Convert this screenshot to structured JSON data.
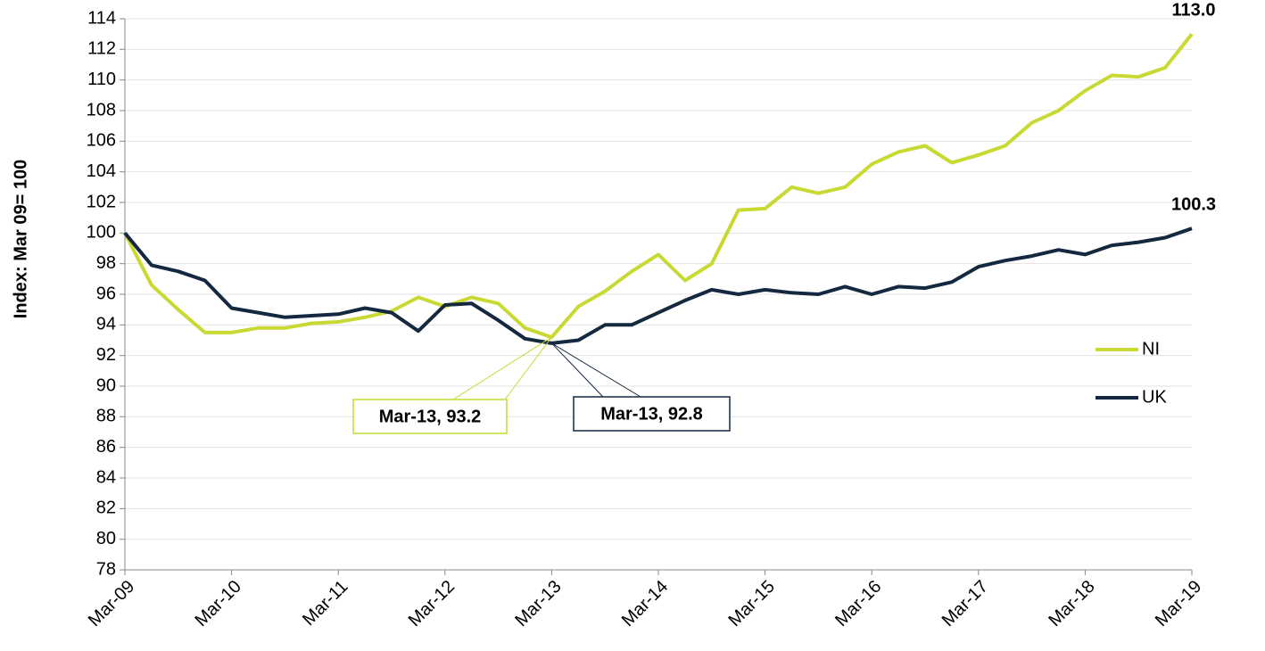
{
  "chart_data": {
    "type": "line",
    "y_label": "Index: Mar 09= 100",
    "categories": [
      "Mar-09",
      null,
      null,
      null,
      "Mar-10",
      null,
      null,
      null,
      "Mar-11",
      null,
      null,
      null,
      "Mar-12",
      null,
      null,
      null,
      "Mar-13",
      null,
      null,
      null,
      "Mar-14",
      null,
      null,
      null,
      "Mar-15",
      null,
      null,
      null,
      "Mar-16",
      null,
      null,
      null,
      "Mar-17",
      null,
      null,
      null,
      "Mar-18",
      null,
      null,
      null,
      "Mar-19"
    ],
    "series": [
      {
        "name": "NI",
        "color": "#c9d933",
        "values": [
          100,
          96.6,
          95.0,
          93.5,
          93.5,
          93.8,
          93.8,
          94.1,
          94.2,
          94.5,
          94.9,
          95.8,
          95.2,
          95.8,
          95.4,
          93.8,
          93.2,
          95.2,
          96.2,
          97.5,
          98.6,
          96.9,
          98.0,
          101.5,
          101.6,
          103.0,
          102.6,
          103.0,
          104.5,
          105.3,
          105.7,
          104.6,
          105.1,
          105.7,
          107.2,
          108.0,
          109.3,
          110.3,
          110.2,
          110.8,
          113.0
        ],
        "value_labels": [
          null,
          null,
          null,
          null,
          null,
          null,
          null,
          null,
          null,
          null,
          null,
          null,
          null,
          null,
          null,
          null,
          null,
          null,
          null,
          null,
          null,
          null,
          null,
          null,
          null,
          null,
          null,
          null,
          null,
          null,
          null,
          null,
          null,
          null,
          null,
          null,
          null,
          null,
          null,
          null,
          "113.0"
        ]
      },
      {
        "name": "UK",
        "color": "#14283f",
        "values": [
          100,
          97.9,
          97.5,
          96.9,
          95.1,
          94.8,
          94.5,
          94.6,
          94.7,
          95.1,
          94.8,
          93.6,
          95.3,
          95.4,
          94.3,
          93.1,
          92.8,
          93.0,
          94.0,
          94.0,
          94.8,
          95.6,
          96.3,
          96.0,
          96.3,
          96.1,
          96.0,
          96.5,
          96.0,
          96.5,
          96.4,
          96.8,
          97.8,
          98.2,
          98.5,
          98.9,
          98.6,
          99.2,
          99.4,
          99.7,
          100.3
        ],
        "value_labels": [
          null,
          null,
          null,
          null,
          null,
          null,
          null,
          null,
          null,
          null,
          null,
          null,
          null,
          null,
          null,
          null,
          null,
          null,
          null,
          null,
          null,
          null,
          null,
          null,
          null,
          null,
          null,
          null,
          null,
          null,
          null,
          null,
          null,
          null,
          null,
          null,
          null,
          null,
          null,
          null,
          "100.3"
        ]
      }
    ],
    "annotations": [
      {
        "text": "Mar-13, 93.2"
      },
      {
        "text": "Mar-13, 92.8"
      }
    ],
    "ylim": [
      78,
      114
    ],
    "yticks": [
      78,
      80,
      82,
      84,
      86,
      88,
      90,
      92,
      94,
      96,
      98,
      100,
      102,
      104,
      106,
      108,
      110,
      112,
      114
    ],
    "grid": true,
    "legend": "right"
  }
}
